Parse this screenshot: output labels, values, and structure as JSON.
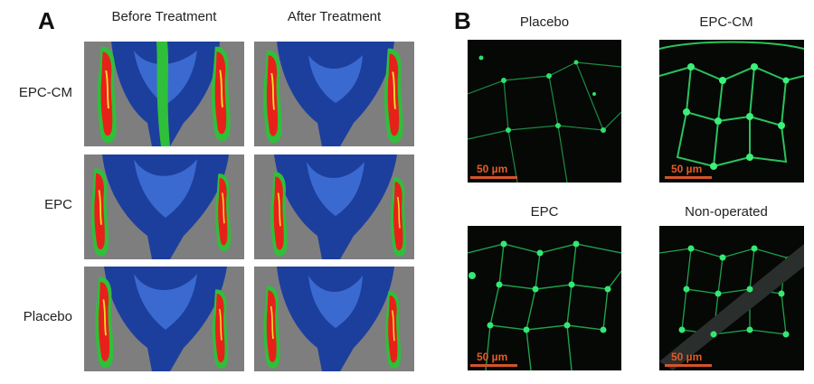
{
  "panel_a": {
    "letter": "A",
    "columns": [
      "Before Treatment",
      "After Treatment"
    ],
    "rows": [
      "EPC-CM",
      "EPC",
      "Placebo"
    ],
    "image_type": "laser-doppler-perfusion-heatmap",
    "colors": {
      "background": "#7e7e7e",
      "low": "#1c3f9e",
      "mid": "#2fbf3a",
      "high": "#e8201a",
      "accent": "#f0e02a"
    }
  },
  "panel_b": {
    "letter": "B",
    "tiles": [
      {
        "title": "Placebo",
        "scale_label": "50 µm"
      },
      {
        "title": "EPC-CM",
        "scale_label": "50 µm"
      },
      {
        "title": "EPC",
        "scale_label": "50 µm"
      },
      {
        "title": "Non-operated",
        "scale_label": "50 µm"
      }
    ],
    "image_type": "fluorescence-micrograph",
    "colors": {
      "background": "#050805",
      "stain": "#2ee06a",
      "scale_bar": "#d3542a"
    }
  }
}
